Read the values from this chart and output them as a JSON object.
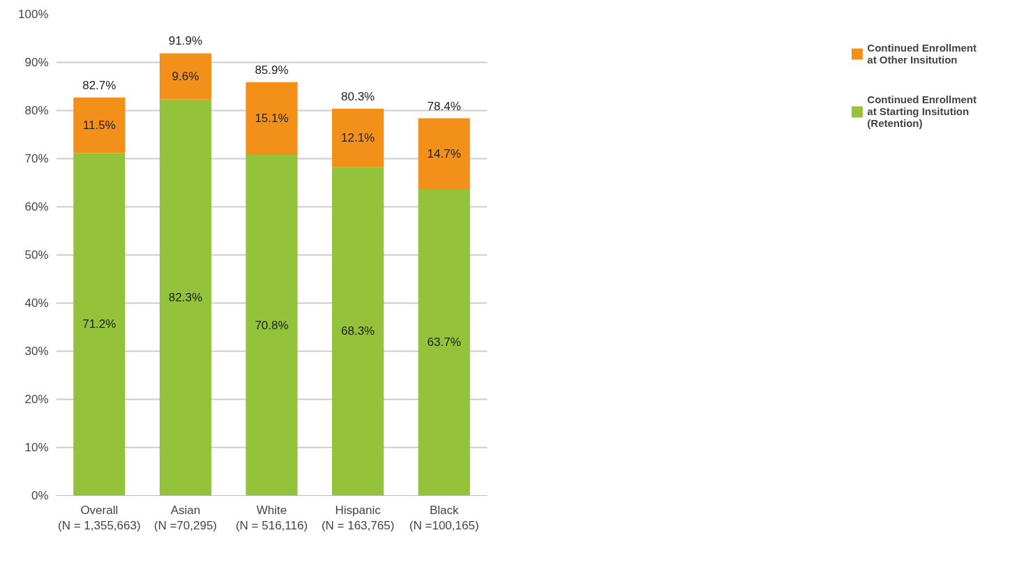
{
  "chart_data": {
    "type": "bar",
    "stacked": true,
    "categories": [
      "Overall\n(N = 1,355,663)",
      "Asian\n(N =70,295)",
      "White\n(N = 516,116)",
      "Hispanic\n(N = 163,765)",
      "Black\n(N =100,165)"
    ],
    "series": [
      {
        "name": "Continued Enrollment at Starting Insitution (Retention)",
        "color": "#94c23a",
        "values": [
          71.2,
          82.3,
          70.8,
          68.3,
          63.7
        ],
        "value_labels": [
          "71.2%",
          "82.3%",
          "70.8%",
          "68.3%",
          "63.7%"
        ]
      },
      {
        "name": "Continued Enrollment at Other Insitution",
        "color": "#f39019",
        "values": [
          11.5,
          9.6,
          15.1,
          12.1,
          14.7
        ],
        "value_labels": [
          "11.5%",
          "9.6%",
          "15.1%",
          "12.1%",
          "14.7%"
        ]
      }
    ],
    "totals": [
      "82.7%",
      "91.9%",
      "85.9%",
      "80.3%",
      "78.4%"
    ],
    "ylim": [
      0,
      100
    ],
    "yticks": [
      {
        "value": 0,
        "label": "0%"
      },
      {
        "value": 10,
        "label": "10%"
      },
      {
        "value": 20,
        "label": "20%"
      },
      {
        "value": 30,
        "label": "30%"
      },
      {
        "value": 40,
        "label": "40%"
      },
      {
        "value": 50,
        "label": "50%"
      },
      {
        "value": 60,
        "label": "60%"
      },
      {
        "value": 70,
        "label": "70%"
      },
      {
        "value": 80,
        "label": "80%"
      },
      {
        "value": 90,
        "label": "90%"
      },
      {
        "value": 100,
        "label": "100%"
      }
    ],
    "grid": "y",
    "legend": "right"
  }
}
